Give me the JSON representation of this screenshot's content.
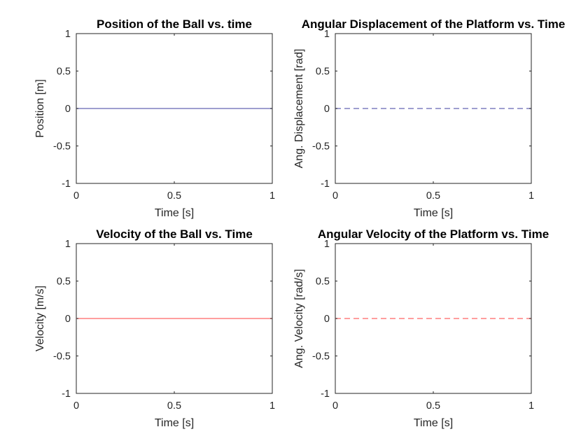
{
  "figure": {
    "background": "#ffffff",
    "axis_color": "#262626"
  },
  "chart_data": [
    {
      "type": "line",
      "title": "Position of the Ball vs. time",
      "xlabel": "Time [s]",
      "ylabel": "Position [m]",
      "xlim": [
        0,
        1
      ],
      "ylim": [
        -1,
        1
      ],
      "xticks": [
        0,
        0.5,
        1
      ],
      "xtick_labels": [
        "0",
        "0.5",
        "1"
      ],
      "yticks": [
        -1,
        -0.5,
        0,
        0.5,
        1
      ],
      "ytick_labels": [
        "-1",
        "-0.5",
        "0",
        "0.5",
        "1"
      ],
      "grid": false,
      "series": [
        {
          "x": [
            0,
            1
          ],
          "y": [
            0,
            0
          ],
          "color": "#7f7fbf",
          "dash": "solid"
        }
      ]
    },
    {
      "type": "line",
      "title": "Angular Displacement of the Platform vs. Time",
      "xlabel": "Time [s]",
      "ylabel": "Ang. Displacement [rad]",
      "xlim": [
        0,
        1
      ],
      "ylim": [
        -1,
        1
      ],
      "xticks": [
        0,
        0.5,
        1
      ],
      "xtick_labels": [
        "0",
        "0.5",
        "1"
      ],
      "yticks": [
        -1,
        -0.5,
        0,
        0.5,
        1
      ],
      "ytick_labels": [
        "-1",
        "-0.5",
        "0",
        "0.5",
        "1"
      ],
      "grid": false,
      "series": [
        {
          "x": [
            0,
            1
          ],
          "y": [
            0,
            0
          ],
          "color": "#7f7fbf",
          "dash": "dashed"
        }
      ]
    },
    {
      "type": "line",
      "title": "Velocity of the Ball vs. Time",
      "xlabel": "Time [s]",
      "ylabel": "Velocity [m/s]",
      "xlim": [
        0,
        1
      ],
      "ylim": [
        -1,
        1
      ],
      "xticks": [
        0,
        0.5,
        1
      ],
      "xtick_labels": [
        "0",
        "0.5",
        "1"
      ],
      "yticks": [
        -1,
        -0.5,
        0,
        0.5,
        1
      ],
      "ytick_labels": [
        "-1",
        "-0.5",
        "0",
        "0.5",
        "1"
      ],
      "grid": false,
      "series": [
        {
          "x": [
            0,
            1
          ],
          "y": [
            0,
            0
          ],
          "color": "#ff7f7f",
          "dash": "solid"
        }
      ]
    },
    {
      "type": "line",
      "title": "Angular Velocity of the Platform vs. Time",
      "xlabel": "Time [s]",
      "ylabel": "Ang. Velocity [rad/s]",
      "xlim": [
        0,
        1
      ],
      "ylim": [
        -1,
        1
      ],
      "xticks": [
        0,
        0.5,
        1
      ],
      "xtick_labels": [
        "0",
        "0.5",
        "1"
      ],
      "yticks": [
        -1,
        -0.5,
        0,
        0.5,
        1
      ],
      "ytick_labels": [
        "-1",
        "-0.5",
        "0",
        "0.5",
        "1"
      ],
      "grid": false,
      "series": [
        {
          "x": [
            0,
            1
          ],
          "y": [
            0,
            0
          ],
          "color": "#ff7f7f",
          "dash": "dashed"
        }
      ]
    }
  ]
}
